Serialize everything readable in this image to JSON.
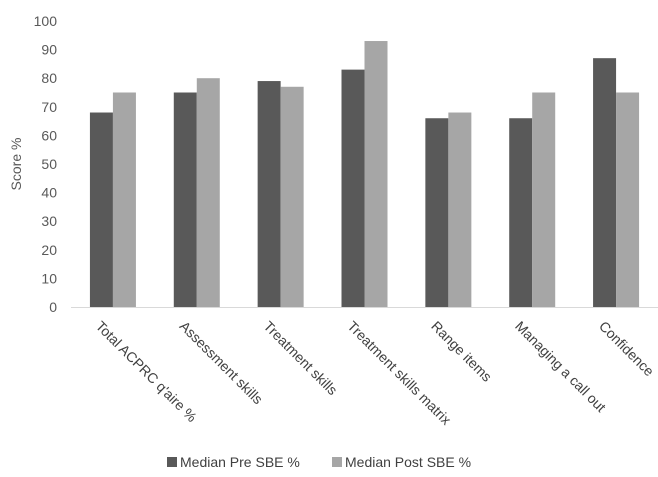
{
  "chart_data": {
    "type": "bar",
    "categories": [
      "Total ACPRC q'aire %",
      "Assessment skills",
      "Treatment skills",
      "Treatment skills matrix",
      "Range items",
      "Managing a call out",
      "Confidence"
    ],
    "series": [
      {
        "name": "Median Pre SBE %",
        "color": "#595959",
        "values": [
          68,
          75,
          79,
          83,
          66,
          66,
          87
        ]
      },
      {
        "name": "Median Post SBE %",
        "color": "#a6a6a6",
        "values": [
          75,
          80,
          77,
          93,
          68,
          75,
          75
        ]
      }
    ],
    "ylabel": "Score %",
    "xlabel": "",
    "ylim": [
      0,
      100
    ],
    "yticks": [
      "0",
      "10",
      "20",
      "30",
      "40",
      "50",
      "60",
      "70",
      "80",
      "90",
      "100"
    ],
    "grid": false,
    "legend": "bottom"
  }
}
